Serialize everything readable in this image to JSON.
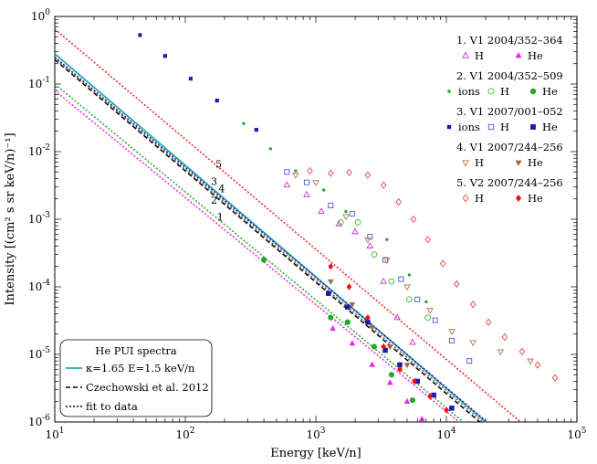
{
  "chart_data": {
    "type": "scatter",
    "title": "",
    "xlabel": "Energy [keV/n]",
    "ylabel": "Intensity [(cm² s sr keV/n)⁻¹]",
    "xscale": "log",
    "yscale": "log",
    "xlim": [
      10,
      100000
    ],
    "ylim": [
      1e-06,
      1
    ],
    "x_ticks": [
      {
        "value": 10,
        "base": "10",
        "exp": "1"
      },
      {
        "value": 100,
        "base": "10",
        "exp": "2"
      },
      {
        "value": 1000,
        "base": "10",
        "exp": "3"
      },
      {
        "value": 10000,
        "base": "10",
        "exp": "4"
      },
      {
        "value": 100000,
        "base": "10",
        "exp": "5"
      }
    ],
    "y_ticks": [
      {
        "value": 1,
        "base": "10",
        "exp": "0"
      },
      {
        "value": 0.1,
        "base": "10",
        "exp": "-1"
      },
      {
        "value": 0.01,
        "base": "10",
        "exp": "-2"
      },
      {
        "value": 0.001,
        "base": "10",
        "exp": "-3"
      },
      {
        "value": 0.0001,
        "base": "10",
        "exp": "-4"
      },
      {
        "value": 1e-05,
        "base": "10",
        "exp": "-5"
      },
      {
        "value": 1e-06,
        "base": "10",
        "exp": "-6"
      }
    ],
    "legend_groups": [
      {
        "title": "1. V1 2004/352–364",
        "entries": [
          {
            "marker": "triangle-up-open",
            "color": "#cc33cc",
            "label": "H"
          },
          {
            "marker": "triangle-up",
            "color": "#ee22ee",
            "label": "He"
          }
        ]
      },
      {
        "title": "2. V1 2004/352–509",
        "entries": [
          {
            "marker": "dot",
            "color": "#22aa22",
            "label": "ions"
          },
          {
            "marker": "circle-open",
            "color": "#33bb33",
            "label": "H"
          },
          {
            "marker": "circle",
            "color": "#22aa22",
            "label": "He"
          }
        ]
      },
      {
        "title": "3. V1 2007/001–052",
        "entries": [
          {
            "marker": "square-small",
            "color": "#1a1aa8",
            "label": "ions"
          },
          {
            "marker": "square-open",
            "color": "#5555cc",
            "label": "H"
          },
          {
            "marker": "square",
            "color": "#1a1aa8",
            "label": "He"
          }
        ]
      },
      {
        "title": "4. V1 2007/244–256",
        "entries": [
          {
            "marker": "triangle-down-open",
            "color": "#b07a50",
            "label": "H"
          },
          {
            "marker": "triangle-down",
            "color": "#9a6a48",
            "label": "He"
          }
        ]
      },
      {
        "title": "5. V2 2007/244–256",
        "entries": [
          {
            "marker": "diamond-open",
            "color": "#ee4444",
            "label": "H"
          },
          {
            "marker": "diamond",
            "color": "#ee1111",
            "label": "He"
          }
        ]
      }
    ],
    "legend2": {
      "title": "He PUI spectra",
      "entries": [
        {
          "style": "solid",
          "color": "#22aaaa",
          "label": "κ=1.65 E=1.5 keV/n"
        },
        {
          "style": "dashed",
          "color": "#000000",
          "label": "Czechowski et al. 2012"
        },
        {
          "style": "dotted",
          "color": "#000000",
          "label": "fit to data"
        }
      ]
    },
    "lines": [
      {
        "style": "solid",
        "color": "#22aaaa",
        "points": [
          [
            10,
            0.28
          ],
          [
            20000,
            1e-06
          ]
        ]
      },
      {
        "style": "dashed",
        "color": "#000000",
        "points": [
          [
            10,
            0.23
          ],
          [
            18000,
            1e-06
          ]
        ]
      },
      {
        "style": "dotted",
        "color": "#ee2222",
        "points": [
          [
            10,
            0.65
          ],
          [
            37000,
            1e-06
          ]
        ]
      },
      {
        "style": "dotted",
        "color": "#1a1aa8",
        "points": [
          [
            10,
            0.25
          ],
          [
            20500,
            1e-06
          ]
        ]
      },
      {
        "style": "dotted",
        "color": "#7a5a40",
        "points": [
          [
            10,
            0.24
          ],
          [
            19000,
            1e-06
          ]
        ]
      },
      {
        "style": "dotted",
        "color": "#22aa22",
        "points": [
          [
            10,
            0.1
          ],
          [
            13500,
            1e-06
          ]
        ]
      },
      {
        "style": "dotted",
        "color": "#ee22ee",
        "points": [
          [
            10,
            0.08
          ],
          [
            12500,
            1e-06
          ]
        ]
      }
    ],
    "line_labels": [
      {
        "text": "5",
        "x": 180,
        "y": 0.0058
      },
      {
        "text": "3",
        "x": 166,
        "y": 0.0032
      },
      {
        "text": "4",
        "x": 190,
        "y": 0.0025
      },
      {
        "text": "2",
        "x": 166,
        "y": 0.0017
      },
      {
        "text": "1",
        "x": 185,
        "y": 0.00095
      }
    ],
    "series": [
      {
        "name": "V1 2004/352–364 H",
        "marker": "triangle-up-open",
        "color": "#cc33cc",
        "points": [
          [
            600,
            0.0032
          ],
          [
            850,
            0.0023
          ],
          [
            1100,
            0.0013
          ],
          [
            1500,
            0.00085
          ],
          [
            2000,
            0.00065
          ],
          [
            2600,
            0.0004
          ],
          [
            3300,
            0.00012
          ],
          [
            4200,
            3.5e-05
          ],
          [
            5500,
            1.5e-05
          ]
        ]
      },
      {
        "name": "V1 2004/352–364 He",
        "marker": "triangle-up",
        "color": "#ee22ee",
        "points": [
          [
            1350,
            2.4e-05
          ],
          [
            1900,
            1.45e-05
          ],
          [
            2700,
            7e-06
          ],
          [
            3700,
            3.8e-06
          ],
          [
            5000,
            2e-06
          ],
          [
            6500,
            1.1e-06
          ]
        ]
      },
      {
        "name": "V1 2004/352–509 ions",
        "marker": "dot",
        "color": "#22aa22",
        "points": [
          [
            280,
            0.026
          ],
          [
            450,
            0.011
          ],
          [
            700,
            0.0052
          ],
          [
            1150,
            0.0027
          ],
          [
            1700,
            0.0013
          ],
          [
            3500,
            0.0005
          ],
          [
            5200,
            0.00015
          ],
          [
            7000,
            6e-05
          ]
        ]
      },
      {
        "name": "V1 2004/352–509 H",
        "marker": "circle-open",
        "color": "#33bb33",
        "points": [
          [
            1550,
            0.0009
          ],
          [
            2100,
            0.0009
          ],
          [
            2800,
            0.0003
          ],
          [
            3800,
            0.00012
          ],
          [
            5200,
            6.5e-05
          ],
          [
            7200,
            3.5e-05
          ]
        ]
      },
      {
        "name": "V1 2004/352–509 He",
        "marker": "circle",
        "color": "#22aa22",
        "points": [
          [
            400,
            0.00025
          ],
          [
            1300,
            3.5e-05
          ],
          [
            1750,
            3e-05
          ],
          [
            2800,
            1.3e-05
          ],
          [
            3800,
            5e-06
          ],
          [
            5500,
            2.1e-06
          ]
        ]
      },
      {
        "name": "V1 2007/001–052 ions",
        "marker": "square-small",
        "color": "#1a1aa8",
        "points": [
          [
            45,
            0.53
          ],
          [
            70,
            0.26
          ],
          [
            110,
            0.12
          ],
          [
            175,
            0.057
          ],
          [
            350,
            0.021
          ]
        ]
      },
      {
        "name": "V1 2007/001–052 H",
        "marker": "square-open",
        "color": "#5555cc",
        "points": [
          [
            600,
            0.005
          ],
          [
            850,
            0.0035
          ],
          [
            1300,
            0.0016
          ],
          [
            1900,
            0.0012
          ],
          [
            2600,
            0.00055
          ],
          [
            3400,
            0.00025
          ],
          [
            4500,
            0.00013
          ],
          [
            6000,
            6.5e-05
          ],
          [
            8200,
            3.2e-05
          ],
          [
            11000,
            1.6e-05
          ],
          [
            15000,
            8e-06
          ]
        ]
      },
      {
        "name": "V1 2007/001–052 He",
        "marker": "square",
        "color": "#1a1aa8",
        "points": [
          [
            1250,
            8e-05
          ],
          [
            1750,
            5e-05
          ],
          [
            2500,
            3e-05
          ],
          [
            3400,
            1.15e-05
          ],
          [
            4400,
            7e-06
          ],
          [
            6000,
            4e-06
          ],
          [
            8000,
            2.5e-06
          ],
          [
            11000,
            1.6e-06
          ]
        ]
      },
      {
        "name": "V1 2007/244–256 H",
        "marker": "triangle-down-open",
        "color": "#b07a50",
        "points": [
          [
            700,
            0.0045
          ],
          [
            1000,
            0.0035
          ],
          [
            1700,
            0.0011
          ],
          [
            2500,
            0.0005
          ],
          [
            3500,
            0.00025
          ],
          [
            5000,
            0.0001
          ],
          [
            7500,
            4.5e-05
          ],
          [
            11000,
            2.2e-05
          ],
          [
            16000,
            1.5e-05
          ],
          [
            26000,
            1.1e-05
          ],
          [
            44000,
            8e-06
          ]
        ]
      },
      {
        "name": "V1 2007/244–256 He",
        "marker": "triangle-down",
        "color": "#9a6a48",
        "points": [
          [
            1300,
            0.00012
          ],
          [
            1900,
            5.5e-05
          ],
          [
            2700,
            2.5e-05
          ],
          [
            3700,
            1.3e-05
          ],
          [
            5000,
            7e-06
          ]
        ]
      },
      {
        "name": "V2 2007/244–256 H",
        "marker": "diamond-open",
        "color": "#ee4444",
        "points": [
          [
            900,
            0.0052
          ],
          [
            1300,
            0.0048
          ],
          [
            1800,
            0.0049
          ],
          [
            2500,
            0.0045
          ],
          [
            3300,
            0.0032
          ],
          [
            4300,
            0.0018
          ],
          [
            5600,
            0.001
          ],
          [
            7200,
            0.0005
          ],
          [
            9400,
            0.00022
          ],
          [
            12000,
            0.00011
          ],
          [
            16000,
            5.5e-05
          ],
          [
            21000,
            3e-05
          ],
          [
            28000,
            1.8e-05
          ],
          [
            38000,
            1.1e-05
          ],
          [
            50000,
            7e-06
          ],
          [
            68000,
            4.5e-06
          ]
        ]
      },
      {
        "name": "V2 2007/244–256 He",
        "marker": "diamond",
        "color": "#ee1111",
        "points": [
          [
            1300,
            0.0002
          ],
          [
            1800,
            0.0001
          ],
          [
            2500,
            3.5e-05
          ],
          [
            3300,
            1.3e-05
          ],
          [
            4400,
            6e-06
          ],
          [
            5700,
            4e-06
          ],
          [
            7500,
            2.4e-06
          ],
          [
            10000,
            1.5e-06
          ]
        ]
      }
    ]
  }
}
